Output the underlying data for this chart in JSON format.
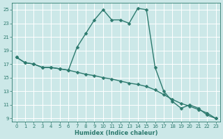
{
  "xlabel": "Humidex (Indice chaleur)",
  "background_color": "#cce8e8",
  "grid_color": "#ffffff",
  "line_color": "#2d7a6e",
  "xlim": [
    -0.5,
    23.5
  ],
  "ylim": [
    8.5,
    26
  ],
  "xticks": [
    0,
    1,
    2,
    3,
    4,
    5,
    6,
    7,
    8,
    9,
    10,
    11,
    12,
    13,
    14,
    15,
    16,
    17,
    18,
    19,
    20,
    21,
    22,
    23
  ],
  "yticks": [
    9,
    11,
    13,
    15,
    17,
    19,
    21,
    23,
    25
  ],
  "series1_x": [
    0,
    1,
    2,
    3,
    4,
    5,
    6,
    7,
    8,
    9,
    10,
    11,
    12,
    13,
    14,
    15,
    16,
    17,
    18,
    19,
    20,
    21,
    22,
    23
  ],
  "series1_y": [
    18.0,
    17.2,
    17.0,
    16.5,
    16.5,
    16.3,
    16.1,
    19.5,
    21.5,
    23.5,
    25.0,
    23.5,
    23.5,
    23.0,
    25.2,
    25.0,
    16.5,
    13.0,
    11.5,
    10.5,
    11.0,
    10.5,
    9.5,
    9.0
  ],
  "series2_x": [
    0,
    1,
    2,
    3,
    4,
    5,
    6,
    7,
    8,
    9,
    10,
    11,
    12,
    13,
    14,
    15,
    16,
    17,
    18,
    19,
    20,
    21,
    22,
    23
  ],
  "series2_y": [
    18.0,
    17.2,
    17.0,
    16.5,
    16.5,
    16.3,
    16.1,
    15.8,
    15.5,
    15.3,
    15.0,
    14.8,
    14.5,
    14.2,
    14.0,
    13.7,
    13.2,
    12.5,
    11.8,
    11.2,
    10.8,
    10.3,
    9.8,
    9.0
  ],
  "marker": "D",
  "markersize": 2.5,
  "linewidth": 1.0,
  "tick_fontsize": 5.0,
  "xlabel_fontsize": 6.0
}
